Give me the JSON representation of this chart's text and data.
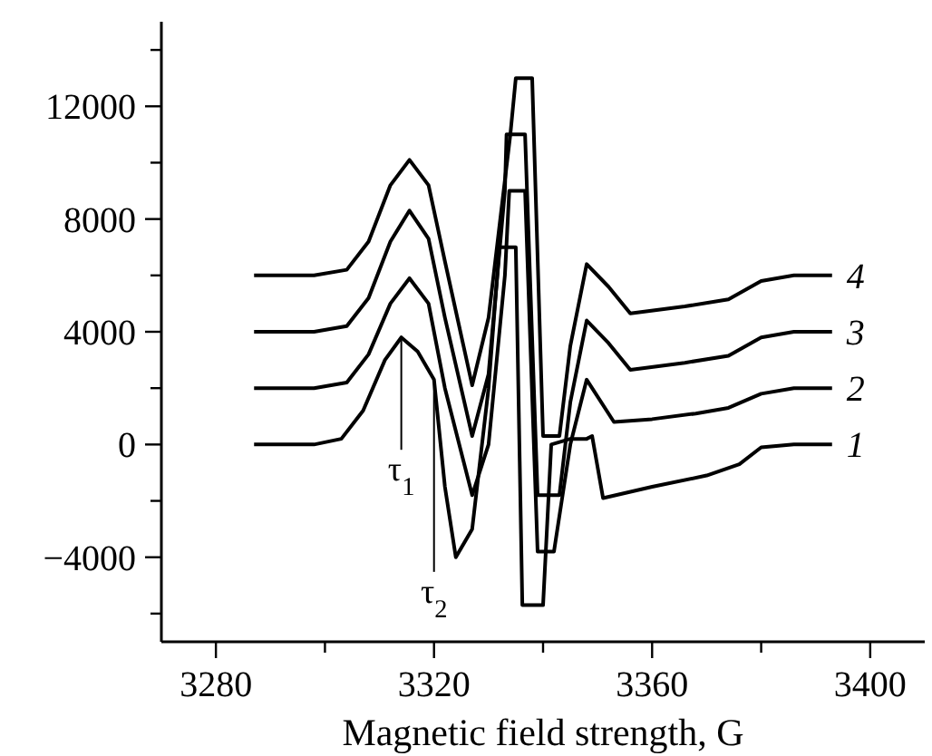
{
  "chart_data": {
    "type": "line",
    "xlabel": "Magnetic field strength, G",
    "xlim": [
      3270,
      3410
    ],
    "ylim": [
      -7000,
      15000
    ],
    "xticks": [
      3280,
      {
        "value": 3300,
        "label": null
      },
      3320,
      {
        "value": 3340,
        "label": null
      },
      3360,
      {
        "value": 3380,
        "label": null
      },
      3400
    ],
    "yticks": [
      {
        "value": -6000,
        "label": null
      },
      {
        "value": -4000,
        "label": "−4000"
      },
      {
        "value": -2000,
        "label": null
      },
      0,
      {
        "value": 2000,
        "label": null
      },
      4000,
      {
        "value": 6000,
        "label": null
      },
      8000,
      {
        "value": 10000,
        "label": null
      },
      12000,
      {
        "value": 14000,
        "label": null
      }
    ],
    "grid": false,
    "marker": "none",
    "line_style": "solid",
    "series": [
      {
        "name": "1",
        "color": "#000000",
        "x": [
          3287,
          3298,
          3303,
          3307,
          3311,
          3314,
          3317,
          3320,
          3322,
          3324,
          3327,
          3330,
          3332,
          3335,
          3336.2,
          3340,
          3341.5,
          3345,
          3348,
          3349,
          3351,
          3360,
          3370,
          3376,
          3380,
          3386,
          3393
        ],
        "values": [
          0,
          0,
          200,
          1200,
          3000,
          3800,
          3300,
          2300,
          -1500,
          -4000,
          -3000,
          2000,
          7000,
          7000,
          -5700,
          -5700,
          0,
          200,
          200,
          300,
          -1900,
          -1500,
          -1100,
          -700,
          -100,
          0,
          0
        ]
      },
      {
        "name": "2",
        "color": "#000000",
        "x": [
          3287,
          3298,
          3304,
          3308,
          3312,
          3315.5,
          3319,
          3322,
          3327,
          3330,
          3333,
          3333.8,
          3336.7,
          3339,
          3342,
          3345,
          3348,
          3353,
          3360,
          3368,
          3374,
          3380,
          3386,
          3393
        ],
        "values": [
          2000,
          2000,
          2200,
          3200,
          5000,
          5900,
          5000,
          2000,
          -1800,
          0,
          6000,
          9000,
          9000,
          -3800,
          -3800,
          0,
          2300,
          800,
          900,
          1100,
          1300,
          1800,
          2000,
          2000
        ]
      },
      {
        "name": "3",
        "color": "#000000",
        "x": [
          3287,
          3298,
          3304,
          3308,
          3312,
          3315.5,
          3319,
          3322,
          3327,
          3330,
          3333,
          3333.3,
          3336.7,
          3339,
          3343,
          3345,
          3348,
          3352,
          3356,
          3366,
          3374,
          3380,
          3386,
          3393
        ],
        "values": [
          4000,
          4000,
          4200,
          5200,
          7200,
          8300,
          7300,
          4500,
          300,
          2500,
          9000,
          11000,
          11000,
          -1800,
          -1800,
          1500,
          4400,
          3600,
          2650,
          2900,
          3150,
          3800,
          4000,
          4000
        ]
      },
      {
        "name": "4",
        "color": "#000000",
        "x": [
          3287,
          3298,
          3304,
          3308,
          3312,
          3315.5,
          3319,
          3322,
          3327,
          3330,
          3334,
          3335,
          3338,
          3340,
          3343,
          3345,
          3348,
          3352,
          3356,
          3366,
          3374,
          3380,
          3386,
          3393
        ],
        "values": [
          6000,
          6000,
          6200,
          7200,
          9200,
          10100,
          9200,
          6500,
          2100,
          4500,
          11000,
          13000,
          13000,
          300,
          300,
          3500,
          6400,
          5600,
          4650,
          4900,
          5150,
          5800,
          6000,
          6000
        ]
      }
    ],
    "annotations": [
      {
        "text": "τ$_{1}$",
        "x": 3314,
        "y": 3800
      },
      {
        "text": "τ$_{2}$",
        "x": 3320,
        "y": 2300
      }
    ]
  }
}
